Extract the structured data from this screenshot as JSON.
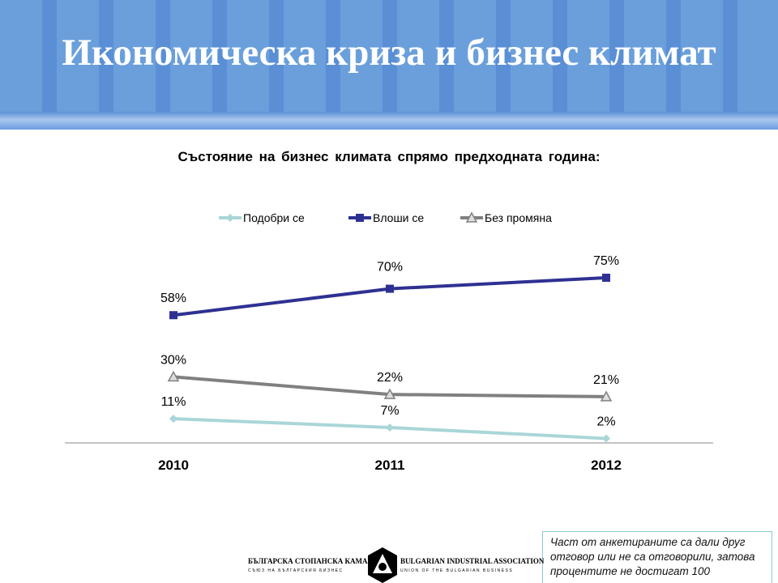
{
  "header": {
    "title": "Икономическа криза и бизнес климат"
  },
  "chart_data": {
    "type": "line",
    "title": "Състояние на бизнес климата спрямо предходната година:",
    "categories": [
      "2010",
      "2011",
      "2012"
    ],
    "ylim": [
      0,
      80
    ],
    "legend_position": "top",
    "series": [
      {
        "name": "Подобри се",
        "values": [
          11,
          7,
          2
        ],
        "labels": [
          "11%",
          "7%",
          "2%"
        ],
        "color": "#a9d6d8",
        "marker": "diamond"
      },
      {
        "name": "Влоши се",
        "values": [
          58,
          70,
          75
        ],
        "labels": [
          "58%",
          "70%",
          "75%"
        ],
        "color": "#2e3192",
        "marker": "square"
      },
      {
        "name": "Без промяна",
        "values": [
          30,
          22,
          21
        ],
        "labels": [
          "30%",
          "22%",
          "21%"
        ],
        "color": "#808080",
        "marker": "triangle"
      }
    ]
  },
  "note": "Част от анкетираните са дали друг отговор или не са отговорили, затова процентите не достигат 100",
  "logo": {
    "bg": "БЪЛГАРСКА СТОПАНСКА КАМАРА",
    "bg_sub": "СЪЮЗ НА БЪЛГАРСКИЯ БИЗНЕС",
    "en": "BULGARIAN INDUSTRIAL ASSOCIATION",
    "en_sub": "UNION OF THE BULGARIAN BUSINESS"
  }
}
